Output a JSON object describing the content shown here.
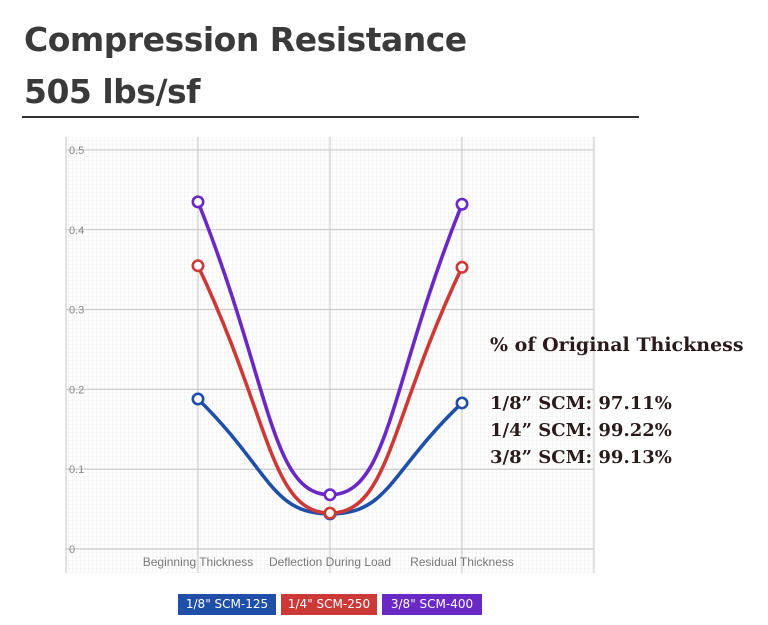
{
  "header": {
    "title_line1": "Compression Resistance",
    "title_line2": "505 lbs/sf"
  },
  "annotation": {
    "heading": "% of Original Thickness",
    "lines": [
      "1/8” SCM: 97.11%",
      "1/4” SCM: 99.22%",
      "3/8” SCM: 99.13%"
    ]
  },
  "chart_data": {
    "type": "line",
    "title": "",
    "xlabel": "",
    "ylabel": "",
    "categories": [
      "Beginning Thickness",
      "Deflection During Load",
      "Residual Thickness"
    ],
    "ylim": [
      0,
      0.5
    ],
    "yticks": [
      "0",
      "0.1",
      "0.2",
      "0.3",
      "0.4",
      "0.5"
    ],
    "grid": true,
    "curve": "smooth",
    "legend_position": "bottom",
    "series": [
      {
        "name": "1/8\" SCM-125",
        "color": "#1f4fa8",
        "values": [
          0.188,
          0.044,
          0.183
        ]
      },
      {
        "name": "1/4\" SCM-250",
        "color": "#cc3a38",
        "values": [
          0.355,
          0.045,
          0.353
        ]
      },
      {
        "name": "3/8\" SCM-400",
        "color": "#6a28c4",
        "values": [
          0.435,
          0.068,
          0.432
        ]
      }
    ]
  }
}
